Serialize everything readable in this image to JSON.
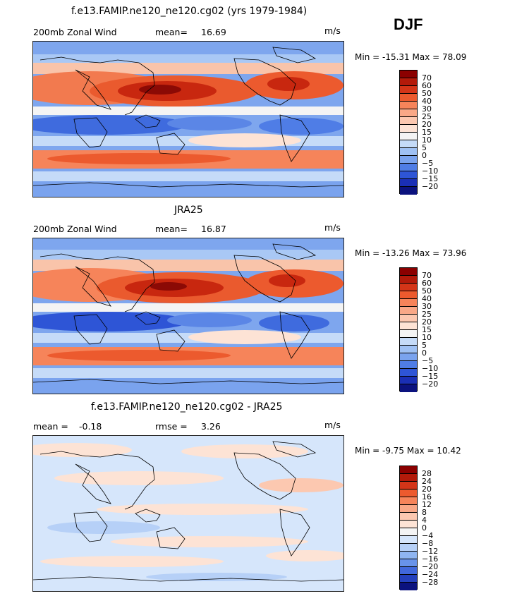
{
  "season": "DJF",
  "units": "m/s",
  "panels": [
    {
      "title": "f.e13.FAMIP.ne120_ne120.cg02 (yrs 1979-1984)",
      "field_label": "200mb Zonal Wind",
      "stat1_label": "mean=",
      "stat1_value": "16.69",
      "stat2_label": "",
      "stat2_value": "",
      "units": "m/s",
      "min_label": "Min =",
      "min_value": "-15.31",
      "max_label": "Max =",
      "max_value": "78.09",
      "colorbar_labels": [
        "70",
        "60",
        "50",
        "40",
        "30",
        "25",
        "20",
        "15",
        "10",
        "5",
        "0",
        "−5",
        "−10",
        "−15",
        "−20"
      ],
      "palette": "wind"
    },
    {
      "title": "JRA25",
      "field_label": "200mb Zonal Wind",
      "stat1_label": "mean=",
      "stat1_value": "16.87",
      "stat2_label": "",
      "stat2_value": "",
      "units": "m/s",
      "min_label": "Min =",
      "min_value": "-13.26",
      "max_label": "Max =",
      "max_value": "73.96",
      "colorbar_labels": [
        "70",
        "60",
        "50",
        "40",
        "30",
        "25",
        "20",
        "15",
        "10",
        "5",
        "0",
        "−5",
        "−10",
        "−15",
        "−20"
      ],
      "palette": "wind"
    },
    {
      "title": "f.e13.FAMIP.ne120_ne120.cg02 - JRA25",
      "field_label": "",
      "stat1_label": "mean =",
      "stat1_value": "-0.18",
      "stat2_label": "rmse =",
      "stat2_value": "3.26",
      "units": "m/s",
      "min_label": "Min =",
      "min_value": "-9.75",
      "max_label": "Max =",
      "max_value": "10.42",
      "colorbar_labels": [
        "28",
        "24",
        "20",
        "16",
        "12",
        "8",
        "4",
        "0",
        "−4",
        "−8",
        "−12",
        "−16",
        "−20",
        "−24",
        "−28"
      ],
      "palette": "diff"
    }
  ],
  "colors": {
    "wind": [
      "#8b0000",
      "#b31a0a",
      "#d43518",
      "#ec5a2e",
      "#f6845a",
      "#f9a887",
      "#fcc8b0",
      "#fde3d5",
      "#f4f4f4",
      "#c5dbf8",
      "#9fc1f4",
      "#7aa3ee",
      "#4f7de6",
      "#2e55d6",
      "#1a2fb5",
      "#0b127e"
    ],
    "diff": [
      "#8b0000",
      "#b31a0a",
      "#d43518",
      "#ec5a2e",
      "#f6845a",
      "#f9a887",
      "#fcc8b0",
      "#fde3d5",
      "#f4f4f4",
      "#d6e6fb",
      "#b6d0f7",
      "#8fb5f1",
      "#6893ea",
      "#4168dc",
      "#2440bd",
      "#0b127e"
    ]
  }
}
